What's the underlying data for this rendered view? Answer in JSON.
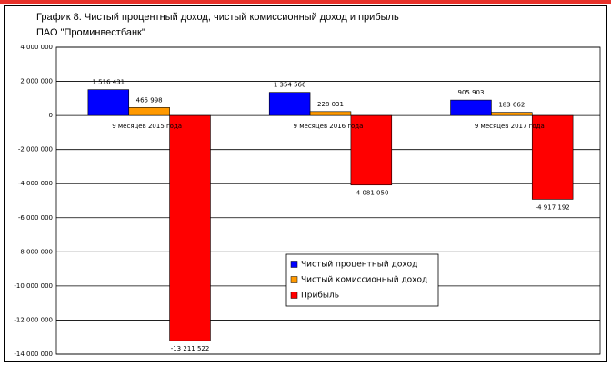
{
  "chart_data": {
    "type": "bar",
    "title": [
      "График 8. Чистый процентный доход, чистый комиссионный доход и прибыль",
      "ПАО \"Проминвестбанк\""
    ],
    "categories": [
      "9 месяцев 2015 года",
      "9 месяцев 2016 года",
      "9 месяцев 2017 года"
    ],
    "series": [
      {
        "name": "Чистый процентный доход",
        "color": "#0000ff",
        "values": [
          1516431,
          1354566,
          905903
        ],
        "value_labels": [
          "1 516 431",
          "1 354 566",
          "905 903"
        ]
      },
      {
        "name": "Чистый комиссионный доход",
        "color": "#ff9900",
        "values": [
          465998,
          228031,
          183662
        ],
        "value_labels": [
          "465 998",
          "228 031",
          "183 662"
        ]
      },
      {
        "name": "Прибыль",
        "color": "#ff0000",
        "values": [
          -13211522,
          -4081050,
          -4917192
        ],
        "value_labels": [
          "-13 211 522",
          "-4 081 050",
          "-4 917 192"
        ]
      }
    ],
    "ylim": [
      -14000000,
      4000000
    ],
    "yticks": [
      {
        "value": 4000000,
        "label": "4 000 000"
      },
      {
        "value": 2000000,
        "label": "2 000 000"
      },
      0,
      {
        "value": -2000000,
        "label": "-2 000 000"
      },
      {
        "value": -4000000,
        "label": "-4 000 000"
      },
      {
        "value": -6000000,
        "label": "-6 000 000"
      },
      {
        "value": -8000000,
        "label": "-8 000 000"
      },
      {
        "value": -10000000,
        "label": "-10 000 000"
      },
      {
        "value": -12000000,
        "label": "-12 000 000"
      },
      {
        "value": -14000000,
        "label": "-14 000 000"
      }
    ],
    "grid": true
  }
}
